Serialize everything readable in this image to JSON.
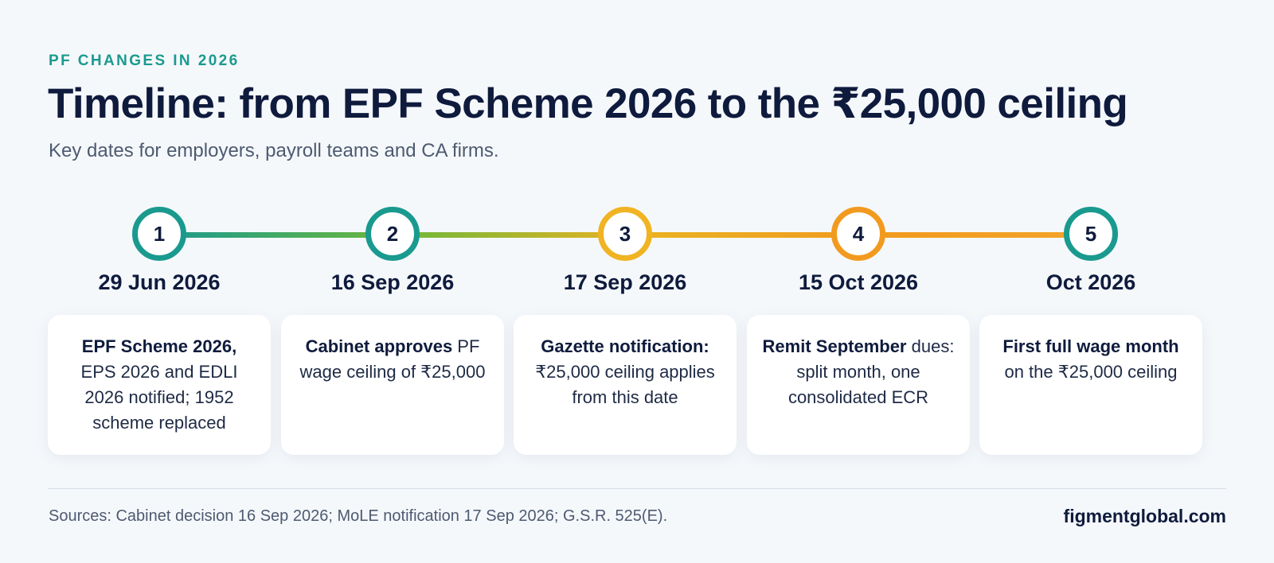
{
  "header": {
    "kicker": "PF CHANGES IN 2026",
    "title": "Timeline: from EPF Scheme 2026 to the ₹25,000 ceiling",
    "subtitle": "Key dates for employers, payroll teams and CA firms."
  },
  "timeline": {
    "track_gradient": [
      "#1a9a8f",
      "#6db83a",
      "#e9b322",
      "#f19a1e",
      "#f3a52a"
    ],
    "steps": [
      {
        "number": "1",
        "date": "29 Jun 2026",
        "bold": "EPF Scheme 2026,",
        "text": " EPS 2026 and EDLI 2026 notified; 1952 scheme replaced",
        "ring_color": "#1a9a8f"
      },
      {
        "number": "2",
        "date": "16 Sep 2026",
        "bold": "Cabinet approves",
        "text": " PF wage ceiling of ₹25,000",
        "ring_color": "#1a9a8f"
      },
      {
        "number": "3",
        "date": "17 Sep 2026",
        "bold": "Gazette notification:",
        "text": " ₹25,000 ceiling applies from this date",
        "ring_color": "#f0b423"
      },
      {
        "number": "4",
        "date": "15 Oct 2026",
        "bold": "Remit September",
        "text": " dues: split month, one consolidated ECR",
        "ring_color": "#f29a1f"
      },
      {
        "number": "5",
        "date": "Oct 2026",
        "bold": "First full wage month",
        "text": " on the ₹25,000 ceiling",
        "ring_color": "#1a9a8f"
      }
    ]
  },
  "footer": {
    "sources": "Sources: Cabinet decision 16 Sep 2026; MoLE notification 17 Sep 2026; G.S.R. 525(E).",
    "brand": "figmentglobal.com"
  }
}
